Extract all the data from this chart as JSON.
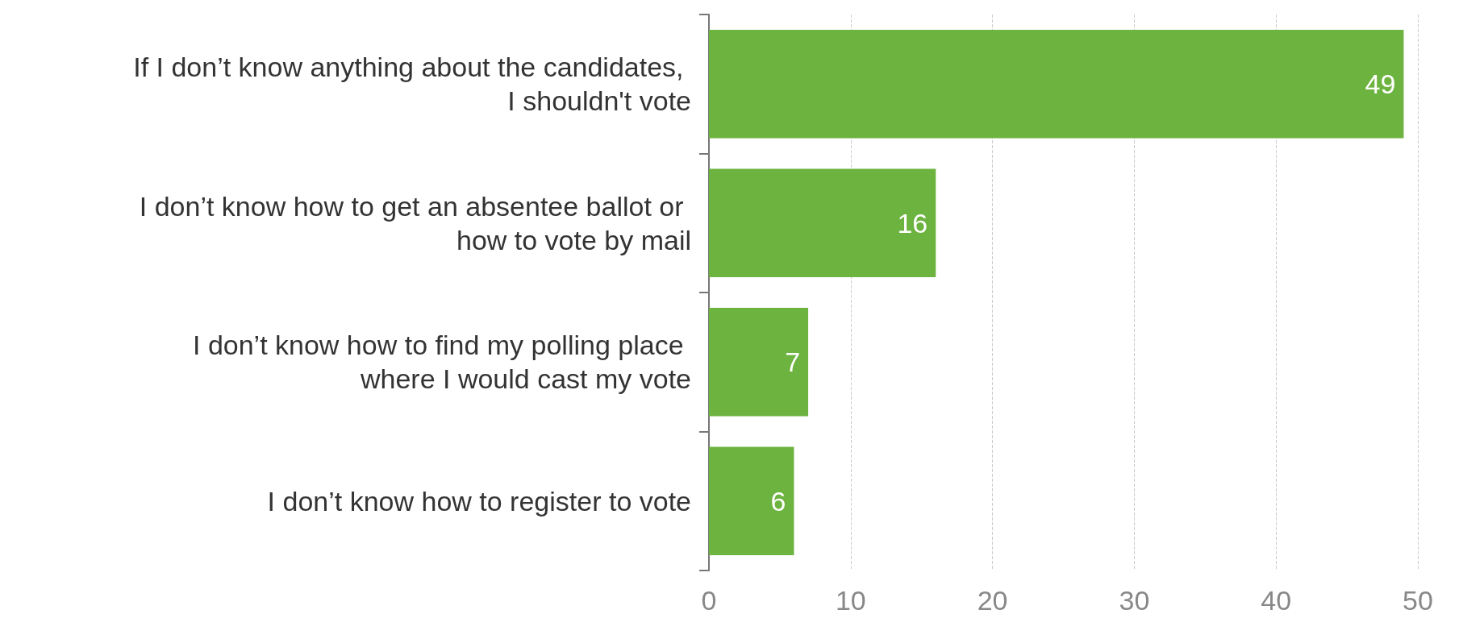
{
  "chart_data": {
    "type": "bar",
    "orientation": "horizontal",
    "categories": [
      "If I don’t know anything about the candidates, I shouldn't vote",
      "I don’t know how to get an absentee ballot or how to vote by mail",
      "I don’t know how to find my polling place where I would cast my vote",
      "I don’t know how to register to vote"
    ],
    "values": [
      49,
      16,
      7,
      6
    ],
    "color": "#6db33f",
    "data_labels": true,
    "xlim": [
      0,
      50
    ],
    "xticks": [
      0,
      10,
      20,
      30,
      40,
      50
    ],
    "grid": "x"
  }
}
